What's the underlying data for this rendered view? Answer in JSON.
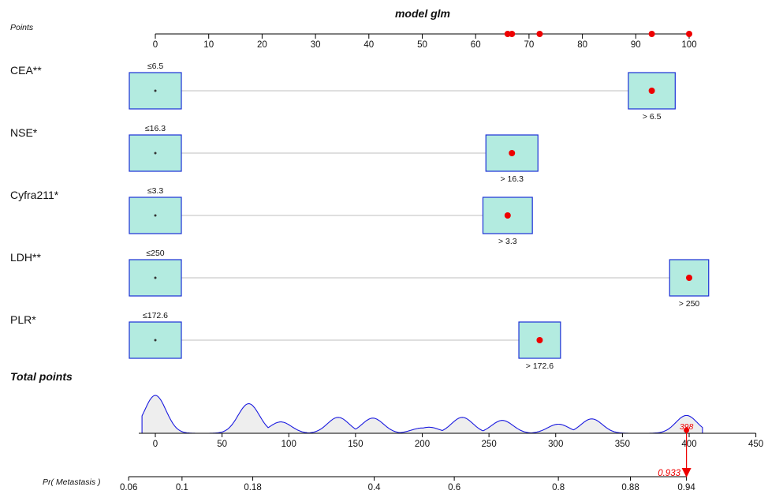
{
  "chart_data": {
    "type": "nomogram",
    "title": "model glm",
    "points_axis": {
      "label": "Points",
      "ticks": [
        0,
        10,
        20,
        30,
        40,
        50,
        60,
        70,
        80,
        90,
        100
      ],
      "selected_points": [
        66,
        66.8,
        72,
        93,
        100
      ]
    },
    "variables": [
      {
        "name": "CEA**",
        "levels": [
          {
            "label": "≤6.5",
            "points": 0,
            "box": 1.0
          },
          {
            "label": "> 6.5",
            "points": 93,
            "box": 0.9
          }
        ],
        "selected": "> 6.5"
      },
      {
        "name": "NSE*",
        "levels": [
          {
            "label": "≤16.3",
            "points": 0,
            "box": 1.0
          },
          {
            "label": "> 16.3",
            "points": 66.8,
            "box": 1.0
          }
        ],
        "selected": "> 16.3"
      },
      {
        "name": "Cyfra211*",
        "levels": [
          {
            "label": "≤3.3",
            "points": 0,
            "box": 1.0
          },
          {
            "label": "> 3.3",
            "points": 66,
            "box": 0.95
          }
        ],
        "selected": "> 3.3"
      },
      {
        "name": "LDH**",
        "levels": [
          {
            "label": "≤250",
            "points": 0,
            "box": 1.0
          },
          {
            "label": "> 250",
            "points": 100,
            "box": 0.75
          }
        ],
        "selected": "> 250"
      },
      {
        "name": "PLR*",
        "levels": [
          {
            "label": "≤172.6",
            "points": 0,
            "box": 1.0
          },
          {
            "label": "> 172.6",
            "points": 72,
            "box": 0.8
          }
        ],
        "selected": "> 172.6"
      }
    ],
    "total_points": {
      "label": "Total points",
      "ticks": [
        0,
        50,
        100,
        150,
        200,
        250,
        300,
        350,
        400,
        450
      ],
      "selected_value": 398,
      "selected_label": "398",
      "density_peaks": [
        {
          "x": 0,
          "h": 1.0
        },
        {
          "x": 70,
          "h": 0.78
        },
        {
          "x": 94,
          "h": 0.3
        },
        {
          "x": 137,
          "h": 0.42
        },
        {
          "x": 163,
          "h": 0.4
        },
        {
          "x": 200,
          "h": 0.14
        },
        {
          "x": 205,
          "h": 0.16
        },
        {
          "x": 230,
          "h": 0.42
        },
        {
          "x": 260,
          "h": 0.34
        },
        {
          "x": 302,
          "h": 0.24
        },
        {
          "x": 327,
          "h": 0.38
        },
        {
          "x": 398,
          "h": 0.47
        }
      ]
    },
    "probability": {
      "label": "Pr( Metastasis )",
      "ticks": [
        0.06,
        0.1,
        0.18,
        0.4,
        0.6,
        0.8,
        0.88,
        0.94
      ],
      "tick_points": [
        -20,
        20,
        73,
        164,
        224,
        302,
        356,
        398
      ],
      "selected_value": 0.933,
      "selected_label": "0.933"
    },
    "colors": {
      "box_fill": "#b3ebe0",
      "box_stroke": "#1a2fd6",
      "highlight": "#ee0000",
      "density_fill": "#eeeeee",
      "density_stroke": "#1a1adf",
      "connector": "#cccccc"
    }
  }
}
